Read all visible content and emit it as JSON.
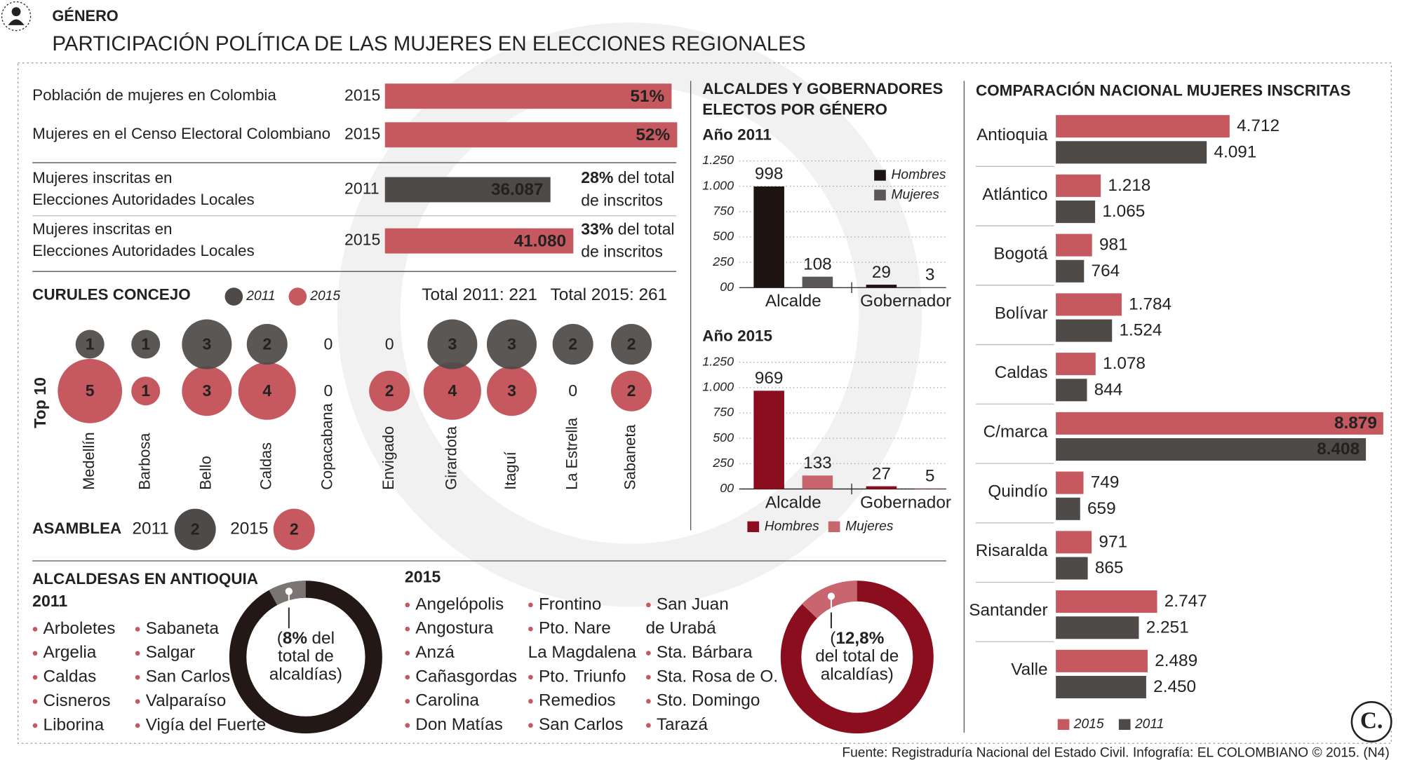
{
  "header": {
    "section": "GÉNERO",
    "title": "PARTICIPACIÓN POLÍTICA DE LAS MUJERES EN ELECCIONES REGIONALES"
  },
  "indicators": [
    {
      "label": [
        "Población de mujeres en Colombia"
      ],
      "year": "2015",
      "value": 51,
      "value_label": "51%",
      "color": "#c5595f"
    },
    {
      "label": [
        "Mujeres en el Censo Electoral Colombiano"
      ],
      "year": "2015",
      "value": 52,
      "value_label": "52%",
      "color": "#c5595f"
    },
    {
      "label": [
        "Mujeres inscritas en",
        "Elecciones Autoridades Locales"
      ],
      "year": "2011",
      "value": 36087,
      "value_label": "36.087",
      "color": "#4d4a48",
      "share": "28%",
      "share_text": [
        "del total",
        "de inscritos"
      ]
    },
    {
      "label": [
        "Mujeres inscritas en",
        "Elecciones Autoridades Locales"
      ],
      "year": "2015",
      "value": 41080,
      "value_label": "41.080",
      "color": "#c5595f",
      "share": "33%",
      "share_text": [
        "del total",
        "de inscritos"
      ]
    }
  ],
  "curules": {
    "title": "CURULES CONCEJO",
    "totals": [
      "Total 2011: 221",
      "Total 2015: 261"
    ],
    "row_label": "Top 10",
    "cities": [
      "Medellín",
      "Barbosa",
      "Bello",
      "Caldas",
      "Copacabana",
      "Envigado",
      "Girardota",
      "Itaguí",
      "La Estrella",
      "Sabaneta"
    ],
    "series": [
      {
        "name": "2011",
        "color": "#4d4a48",
        "values": [
          1,
          1,
          3,
          2,
          0,
          0,
          3,
          3,
          2,
          2
        ]
      },
      {
        "name": "2015",
        "color": "#c5595f",
        "values": [
          5,
          1,
          3,
          4,
          0,
          2,
          4,
          3,
          0,
          2
        ]
      }
    ]
  },
  "asamblea": {
    "title": "ASAMBLEA",
    "entries": [
      {
        "year": "2011",
        "value": 2,
        "color": "#4d4a48"
      },
      {
        "year": "2015",
        "value": 2,
        "color": "#c5595f"
      }
    ]
  },
  "elected": {
    "title": [
      "ALCALDES Y GOBERNADORES",
      "ELECTOS POR GÉNERO"
    ],
    "charts": [
      {
        "type": "bar",
        "title": "Año 2011",
        "categories": [
          "Alcalde",
          "Gobernador"
        ],
        "series": [
          {
            "name": "Hombres",
            "color": "#1e1512",
            "values": [
              998,
              29
            ]
          },
          {
            "name": "Mujeres",
            "color": "#5a5756",
            "values": [
              108,
              3
            ]
          }
        ],
        "ylim": [
          0,
          1250
        ],
        "yticks": [
          {
            "value": 0,
            "label": "00"
          },
          250,
          500,
          750,
          {
            "value": 1000,
            "label": "1.000"
          },
          {
            "value": 1250,
            "label": "1.250"
          }
        ],
        "grid": true,
        "legend": "top-right"
      },
      {
        "type": "bar",
        "title": "Año 2015",
        "categories": [
          "Alcalde",
          "Gobernador"
        ],
        "series": [
          {
            "name": "Hombres",
            "color": "#8b0e1f",
            "values": [
              969,
              27
            ]
          },
          {
            "name": "Mujeres",
            "color": "#c9656e",
            "values": [
              133,
              5
            ]
          }
        ],
        "ylim": [
          0,
          1250
        ],
        "yticks": [
          {
            "value": 0,
            "label": "00"
          },
          250,
          500,
          750,
          {
            "value": 1000,
            "label": "1.000"
          },
          {
            "value": 1250,
            "label": "1.250"
          }
        ],
        "grid": true,
        "legend": "bottom"
      }
    ]
  },
  "inscritas": {
    "type": "hbar",
    "title": "COMPARACIÓN NACIONAL MUJERES INSCRITAS",
    "categories": [
      "Antioquia",
      "Atlántico",
      "Bogotá",
      "Bolívar",
      "Caldas",
      "C/marca",
      "Quindío",
      "Risaralda",
      "Santander",
      "Valle"
    ],
    "series": [
      {
        "name": "2015",
        "color": "#c5595f",
        "values": [
          4712,
          1218,
          981,
          1784,
          1078,
          8879,
          749,
          971,
          2747,
          2489
        ],
        "value_labels": [
          "4.712",
          "1.218",
          "981",
          "1.784",
          "1.078",
          "8.879",
          "749",
          "971",
          "2.747",
          "2.489"
        ]
      },
      {
        "name": "2011",
        "color": "#4d4a48",
        "values": [
          4091,
          1065,
          764,
          1524,
          844,
          8408,
          659,
          865,
          2251,
          2450
        ],
        "value_labels": [
          "4.091",
          "1.065",
          "764",
          "1.524",
          "844",
          "8.408",
          "659",
          "865",
          "2.251",
          "2.450"
        ]
      }
    ]
  },
  "alcaldesas": {
    "title": "ALCALDESAS EN ANTIOQUIA",
    "groups": [
      {
        "year": "2011",
        "columns": [
          [
            "Arboletes",
            "Argelia",
            "Caldas",
            "Cisneros",
            "Liborina"
          ],
          [
            "Sabaneta",
            "Salgar",
            "San Carlos",
            "Valparaíso",
            "Vigía del Fuerte"
          ]
        ],
        "share": 8,
        "share_label": "8%",
        "color": "#231815",
        "share_color": "#7a7473",
        "caption": {
          "open": "(",
          "after": "del",
          "lines": [
            "total de",
            "alcaldías)"
          ]
        }
      },
      {
        "year": "2015",
        "columns": [
          [
            "Angelópolis",
            "Angostura",
            "Anzá",
            "Cañasgordas",
            "Carolina",
            "Don Matías"
          ],
          [
            "Frontino",
            [
              "Pto. Nare",
              "La Magdalena"
            ],
            "Pto. Triunfo",
            "Remedios",
            "San Carlos"
          ],
          [
            [
              "San Juan",
              "de Urabá"
            ],
            "Sta. Bárbara",
            "Sta. Rosa de O.",
            "Sto. Domingo",
            "Tarazá"
          ]
        ],
        "share": 12.8,
        "share_label": "12,8%",
        "color": "#8b0e1f",
        "share_color": "#c9656e",
        "caption": {
          "open": "(",
          "lines": [
            "del total de",
            "alcaldías)"
          ]
        }
      }
    ]
  },
  "footer": {
    "source": "Fuente: Registraduría Nacional del Estado Civil. Infografía: EL COLOMBIANO © 2015. (N4)",
    "logo": "C."
  }
}
